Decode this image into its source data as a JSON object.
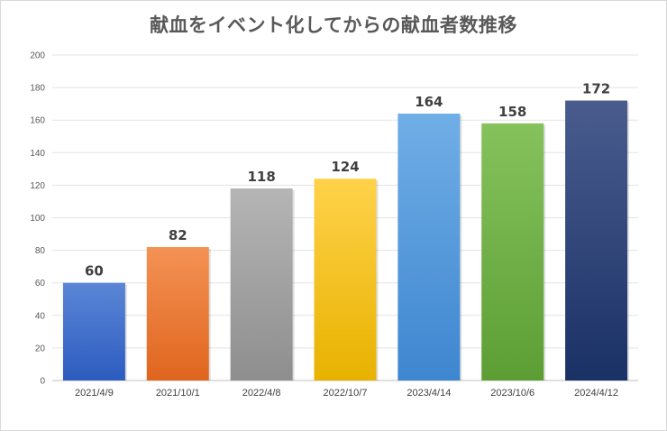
{
  "chart_data": {
    "type": "bar",
    "title": "献血をイベント化してからの献血者数推移",
    "xlabel": "",
    "ylabel": "",
    "categories": [
      "2021/4/9",
      "2021/10/1",
      "2022/4/8",
      "2022/10/7",
      "2023/4/14",
      "2023/10/6",
      "2024/4/12"
    ],
    "values": [
      60,
      82,
      118,
      124,
      164,
      158,
      172
    ],
    "ylim": [
      0,
      200
    ],
    "yticks": [
      0,
      20,
      40,
      60,
      80,
      100,
      120,
      140,
      160,
      180,
      200
    ],
    "grid": true,
    "legend": "none",
    "colors": [
      [
        "#5b86d6",
        "#2d5cc0"
      ],
      [
        "#f39254",
        "#e0651e"
      ],
      [
        "#b5b5b5",
        "#8e8e8e"
      ],
      [
        "#ffd24a",
        "#e8b200"
      ],
      [
        "#70aee6",
        "#3e86d0"
      ],
      [
        "#86c25c",
        "#5c9e34"
      ],
      [
        "#4a5c8e",
        "#1a3166"
      ]
    ]
  }
}
